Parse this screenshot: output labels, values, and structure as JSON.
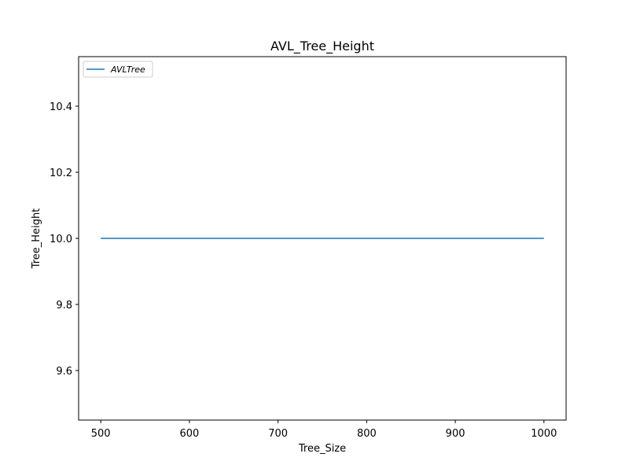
{
  "chart_data": {
    "type": "line",
    "title": "AVL_Tree_Height",
    "xlabel": "Tree_Size",
    "ylabel": "Tree_Height",
    "xlim": [
      475,
      1025
    ],
    "ylim": [
      9.45,
      10.55
    ],
    "xticks": [
      500,
      600,
      700,
      800,
      900,
      1000
    ],
    "xtick_labels": [
      "500",
      "600",
      "700",
      "800",
      "900",
      "1000"
    ],
    "yticks": [
      9.6,
      9.8,
      10.0,
      10.2,
      10.4
    ],
    "ytick_labels": [
      "9.6",
      "9.8",
      "10.0",
      "10.2",
      "10.4"
    ],
    "grid": false,
    "legend_position": "top-left",
    "series": [
      {
        "name": "AVLTree",
        "color": "#1f77b4",
        "x": [
          500,
          1000
        ],
        "y": [
          10.0,
          10.0
        ]
      }
    ]
  }
}
